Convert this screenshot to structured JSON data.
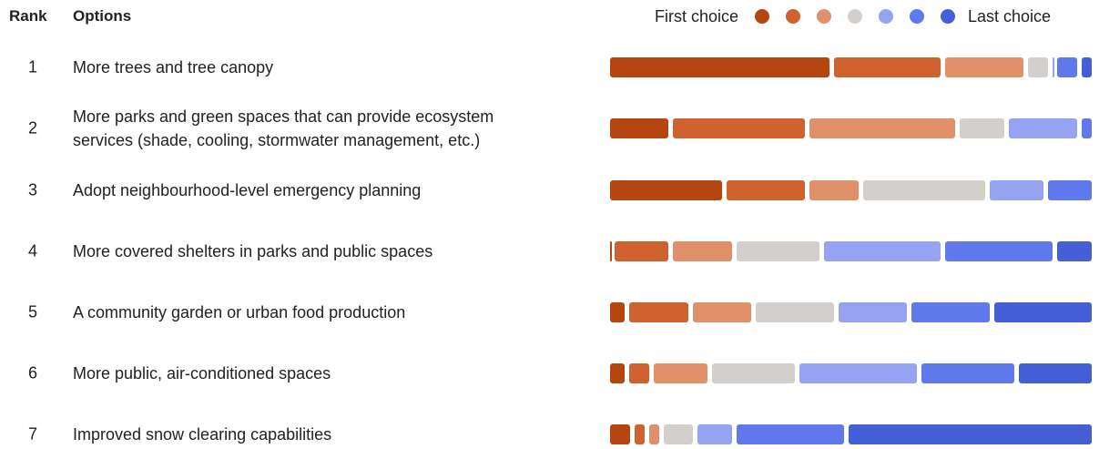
{
  "chart_data": {
    "type": "bar",
    "rank_header": "Rank",
    "options_header": "Options",
    "legend_start": "First choice",
    "legend_end": "Last choice",
    "ranks": [
      "1",
      "2",
      "3",
      "4",
      "5",
      "6",
      "7"
    ],
    "categories": [
      "More trees and tree canopy",
      "More parks and green spaces that can provide ecosystem services (shade, cooling, stormwater management, etc.)",
      "Adopt neighbourhood-level emergency planning",
      "More covered shelters in parks and public spaces",
      "A community garden or urban food production",
      "More public, air-conditioned spaces",
      "Improved snow clearing capabilities"
    ],
    "xlim": [
      0,
      100
    ],
    "series": [
      {
        "color": "#b5460f",
        "values": [
          46,
          13,
          24,
          1,
          4,
          4,
          5
        ]
      },
      {
        "color": "#d0622f",
        "values": [
          23,
          28,
          17,
          12,
          13,
          5,
          3
        ]
      },
      {
        "color": "#e0916a",
        "values": [
          17,
          31,
          11,
          13,
          13,
          12,
          3
        ]
      },
      {
        "color": "#d3cfcc",
        "values": [
          5,
          10,
          26,
          18,
          17,
          18,
          7
        ]
      },
      {
        "color": "#95a3f2",
        "values": [
          1,
          15,
          12,
          25,
          15,
          25,
          8
        ]
      },
      {
        "color": "#6079ec",
        "values": [
          5,
          3,
          10,
          23,
          17,
          20,
          23
        ]
      },
      {
        "color": "#4560d6",
        "values": [
          3,
          0,
          0,
          8,
          21,
          16,
          51
        ]
      }
    ]
  }
}
